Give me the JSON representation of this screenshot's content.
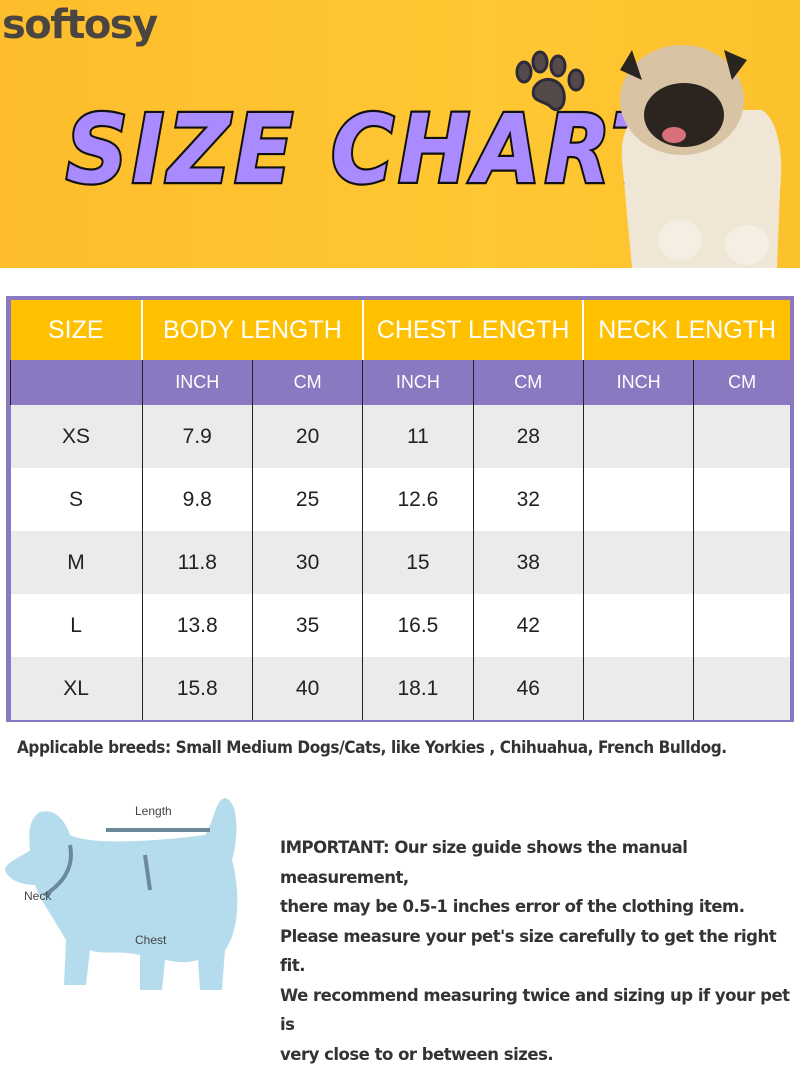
{
  "brand": "softosy",
  "title": "SIZE CHART",
  "colors": {
    "banner": "#ffc533",
    "title_fill": "#a98bff",
    "header_yellow": "#ffc000",
    "subheader_purple": "#8a78c0",
    "row_gray": "#ebebeb",
    "dog_blue": "#b4dcec"
  },
  "icons": [
    "paw-icon",
    "pug-photo",
    "dog-measurement-diagram"
  ],
  "table": {
    "headers": [
      "SIZE",
      "BODY LENGTH",
      "CHEST LENGTH",
      "NECK LENGTH"
    ],
    "subheaders": [
      "",
      "INCH",
      "CM",
      "INCH",
      "CM",
      "INCH",
      "CM"
    ],
    "rows": [
      [
        "XS",
        "7.9",
        "20",
        "11",
        "28",
        "",
        ""
      ],
      [
        "S",
        "9.8",
        "25",
        "12.6",
        "32",
        "",
        ""
      ],
      [
        "M",
        "11.8",
        "30",
        "15",
        "38",
        "",
        ""
      ],
      [
        "L",
        "13.8",
        "35",
        "16.5",
        "42",
        "",
        ""
      ],
      [
        "XL",
        "15.8",
        "40",
        "18.1",
        "46",
        "",
        ""
      ]
    ]
  },
  "breeds_note": "Applicable breeds: Small Medium Dogs/Cats, like Yorkies , Chihuahua, French Bulldog.",
  "diagram": {
    "length": "Length",
    "neck": "Neck",
    "chest": "Chest"
  },
  "important": [
    "IMPORTANT: Our size guide shows the manual measurement,",
    "there may be 0.5-1 inches error of the clothing item.",
    "Please measure your pet's size carefully to get the right fit.",
    "We recommend measuring twice and sizing up if your pet is",
    "very close to or between sizes."
  ]
}
